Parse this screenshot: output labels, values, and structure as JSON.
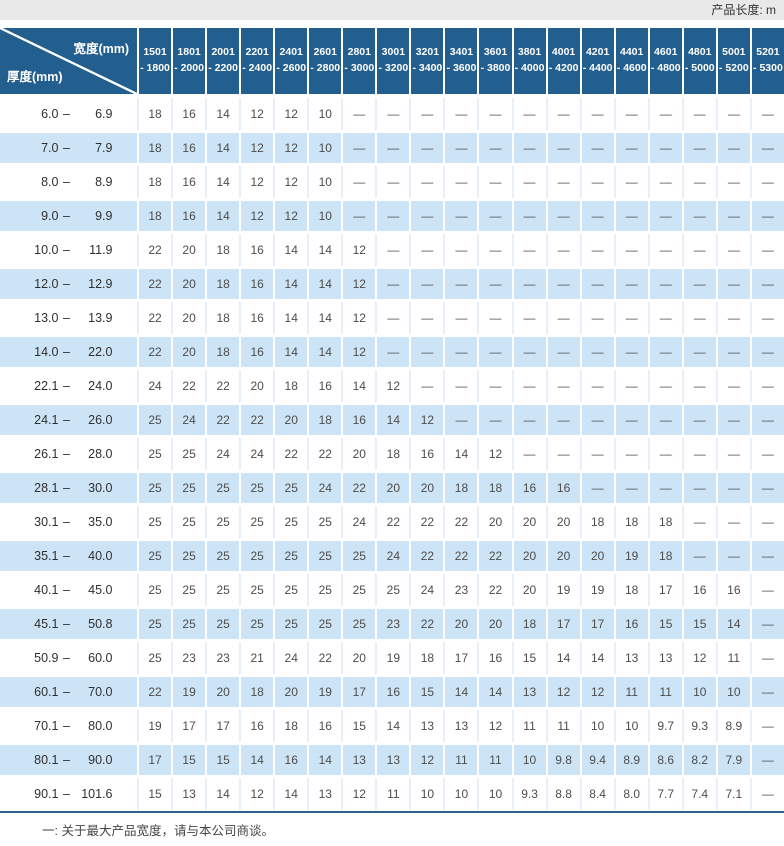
{
  "top_bar": {
    "label": "产品长度: m"
  },
  "table": {
    "corner": {
      "width_label": "宽度(mm)",
      "thickness_label": "厚度(mm)"
    },
    "range_separator": "–",
    "dash": "—",
    "width_columns": [
      [
        "1501",
        "- 1800"
      ],
      [
        "1801",
        "- 2000"
      ],
      [
        "2001",
        "- 2200"
      ],
      [
        "2201",
        "- 2400"
      ],
      [
        "2401",
        "- 2600"
      ],
      [
        "2601",
        "- 2800"
      ],
      [
        "2801",
        "- 3000"
      ],
      [
        "3001",
        "- 3200"
      ],
      [
        "3201",
        "- 3400"
      ],
      [
        "3401",
        "- 3600"
      ],
      [
        "3601",
        "- 3800"
      ],
      [
        "3801",
        "- 4000"
      ],
      [
        "4001",
        "- 4200"
      ],
      [
        "4201",
        "- 4400"
      ],
      [
        "4401",
        "- 4600"
      ],
      [
        "4601",
        "- 4800"
      ],
      [
        "4801",
        "- 5000"
      ],
      [
        "5001",
        "- 5200"
      ],
      [
        "5201",
        "- 5300"
      ]
    ],
    "rows": [
      {
        "min": "6.0",
        "max": "6.9",
        "values": [
          "18",
          "16",
          "14",
          "12",
          "12",
          "10",
          "—",
          "—",
          "—",
          "—",
          "—",
          "—",
          "—",
          "—",
          "—",
          "—",
          "—",
          "—",
          "—"
        ]
      },
      {
        "min": "7.0",
        "max": "7.9",
        "values": [
          "18",
          "16",
          "14",
          "12",
          "12",
          "10",
          "—",
          "—",
          "—",
          "—",
          "—",
          "—",
          "—",
          "—",
          "—",
          "—",
          "—",
          "—",
          "—"
        ]
      },
      {
        "min": "8.0",
        "max": "8.9",
        "values": [
          "18",
          "16",
          "14",
          "12",
          "12",
          "10",
          "—",
          "—",
          "—",
          "—",
          "—",
          "—",
          "—",
          "—",
          "—",
          "—",
          "—",
          "—",
          "—"
        ]
      },
      {
        "min": "9.0",
        "max": "9.9",
        "values": [
          "18",
          "16",
          "14",
          "12",
          "12",
          "10",
          "—",
          "—",
          "—",
          "—",
          "—",
          "—",
          "—",
          "—",
          "—",
          "—",
          "—",
          "—",
          "—"
        ]
      },
      {
        "min": "10.0",
        "max": "11.9",
        "values": [
          "22",
          "20",
          "18",
          "16",
          "14",
          "14",
          "12",
          "—",
          "—",
          "—",
          "—",
          "—",
          "—",
          "—",
          "—",
          "—",
          "—",
          "—",
          "—"
        ]
      },
      {
        "min": "12.0",
        "max": "12.9",
        "values": [
          "22",
          "20",
          "18",
          "16",
          "14",
          "14",
          "12",
          "—",
          "—",
          "—",
          "—",
          "—",
          "—",
          "—",
          "—",
          "—",
          "—",
          "—",
          "—"
        ]
      },
      {
        "min": "13.0",
        "max": "13.9",
        "values": [
          "22",
          "20",
          "18",
          "16",
          "14",
          "14",
          "12",
          "—",
          "—",
          "—",
          "—",
          "—",
          "—",
          "—",
          "—",
          "—",
          "—",
          "—",
          "—"
        ]
      },
      {
        "min": "14.0",
        "max": "22.0",
        "values": [
          "22",
          "20",
          "18",
          "16",
          "14",
          "14",
          "12",
          "—",
          "—",
          "—",
          "—",
          "—",
          "—",
          "—",
          "—",
          "—",
          "—",
          "—",
          "—"
        ]
      },
      {
        "min": "22.1",
        "max": "24.0",
        "values": [
          "24",
          "22",
          "22",
          "20",
          "18",
          "16",
          "14",
          "12",
          "—",
          "—",
          "—",
          "—",
          "—",
          "—",
          "—",
          "—",
          "—",
          "—",
          "—"
        ]
      },
      {
        "min": "24.1",
        "max": "26.0",
        "values": [
          "25",
          "24",
          "22",
          "22",
          "20",
          "18",
          "16",
          "14",
          "12",
          "—",
          "—",
          "—",
          "—",
          "—",
          "—",
          "—",
          "—",
          "—",
          "—"
        ]
      },
      {
        "min": "26.1",
        "max": "28.0",
        "values": [
          "25",
          "25",
          "24",
          "24",
          "22",
          "22",
          "20",
          "18",
          "16",
          "14",
          "12",
          "—",
          "—",
          "—",
          "—",
          "—",
          "—",
          "—",
          "—"
        ]
      },
      {
        "min": "28.1",
        "max": "30.0",
        "values": [
          "25",
          "25",
          "25",
          "25",
          "25",
          "24",
          "22",
          "20",
          "20",
          "18",
          "18",
          "16",
          "16",
          "—",
          "—",
          "—",
          "—",
          "—",
          "—"
        ]
      },
      {
        "min": "30.1",
        "max": "35.0",
        "values": [
          "25",
          "25",
          "25",
          "25",
          "25",
          "25",
          "24",
          "22",
          "22",
          "22",
          "20",
          "20",
          "20",
          "18",
          "18",
          "18",
          "—",
          "—",
          "—"
        ]
      },
      {
        "min": "35.1",
        "max": "40.0",
        "values": [
          "25",
          "25",
          "25",
          "25",
          "25",
          "25",
          "25",
          "24",
          "22",
          "22",
          "22",
          "20",
          "20",
          "20",
          "19",
          "18",
          "—",
          "—",
          "—"
        ]
      },
      {
        "min": "40.1",
        "max": "45.0",
        "values": [
          "25",
          "25",
          "25",
          "25",
          "25",
          "25",
          "25",
          "25",
          "24",
          "23",
          "22",
          "20",
          "19",
          "19",
          "18",
          "17",
          "16",
          "16",
          "—"
        ]
      },
      {
        "min": "45.1",
        "max": "50.8",
        "values": [
          "25",
          "25",
          "25",
          "25",
          "25",
          "25",
          "25",
          "23",
          "22",
          "20",
          "20",
          "18",
          "17",
          "17",
          "16",
          "15",
          "15",
          "14",
          "—"
        ]
      },
      {
        "min": "50.9",
        "max": "60.0",
        "values": [
          "25",
          "23",
          "23",
          "21",
          "24",
          "22",
          "20",
          "19",
          "18",
          "17",
          "16",
          "15",
          "14",
          "14",
          "13",
          "13",
          "12",
          "11",
          "—"
        ]
      },
      {
        "min": "60.1",
        "max": "70.0",
        "values": [
          "22",
          "19",
          "20",
          "18",
          "20",
          "19",
          "17",
          "16",
          "15",
          "14",
          "14",
          "13",
          "12",
          "12",
          "11",
          "11",
          "10",
          "10",
          "—"
        ]
      },
      {
        "min": "70.1",
        "max": "80.0",
        "values": [
          "19",
          "17",
          "17",
          "16",
          "18",
          "16",
          "15",
          "14",
          "13",
          "13",
          "12",
          "11",
          "11",
          "10",
          "10",
          "9.7",
          "9.3",
          "8.9",
          "—"
        ]
      },
      {
        "min": "80.1",
        "max": "90.0",
        "values": [
          "17",
          "15",
          "15",
          "14",
          "16",
          "14",
          "13",
          "13",
          "12",
          "11",
          "11",
          "10",
          "9.8",
          "9.4",
          "8.9",
          "8.6",
          "8.2",
          "7.9",
          "—"
        ]
      },
      {
        "min": "90.1",
        "max": "101.6",
        "values": [
          "15",
          "13",
          "14",
          "12",
          "14",
          "13",
          "12",
          "11",
          "10",
          "10",
          "10",
          "9.3",
          "8.8",
          "8.4",
          "8.0",
          "7.7",
          "7.4",
          "7.1",
          "—"
        ]
      }
    ]
  },
  "footnote": "一: 关于最大产品宽度，请与本公司商谈。",
  "colors": {
    "header_bg": "#225e8e",
    "row_alt_bg": "#cce4f6",
    "divider": "#2e618c",
    "topbar_bg": "#e9e9e9"
  }
}
